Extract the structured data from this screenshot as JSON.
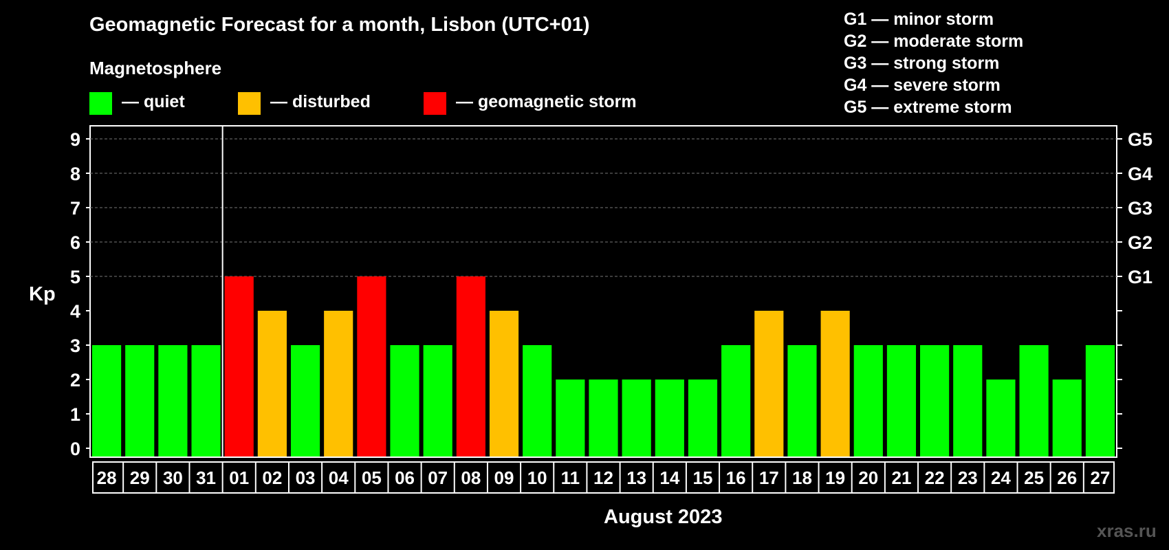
{
  "title": "Geomagnetic Forecast for a month, Lisbon (UTC+01)",
  "legend": {
    "heading": "Magnetosphere",
    "items": [
      {
        "label": "— quiet",
        "color": "#00ff00"
      },
      {
        "label": "— disturbed",
        "color": "#ffc000"
      },
      {
        "label": "— geomagnetic storm",
        "color": "#ff0000"
      }
    ],
    "storm_levels": [
      "G1 — minor storm",
      "G2 — moderate storm",
      "G3 — strong storm",
      "G4 — severe storm",
      "G5 — extreme storm"
    ]
  },
  "watermark": "xras.ru",
  "chart_data": {
    "type": "bar",
    "title": "Geomagnetic Forecast for a month, Lisbon (UTC+01)",
    "xlabel": "August 2023",
    "ylabel": "Kp",
    "ylim": [
      0,
      9
    ],
    "yticks": [
      0,
      1,
      2,
      3,
      4,
      5,
      6,
      7,
      8,
      9
    ],
    "right_axis_labels": [
      {
        "kp": 5,
        "label": "G1"
      },
      {
        "kp": 6,
        "label": "G2"
      },
      {
        "kp": 7,
        "label": "G3"
      },
      {
        "kp": 8,
        "label": "G4"
      },
      {
        "kp": 9,
        "label": "G5"
      }
    ],
    "month_divider_after": "31",
    "categories": [
      "28",
      "29",
      "30",
      "31",
      "01",
      "02",
      "03",
      "04",
      "05",
      "06",
      "07",
      "08",
      "09",
      "10",
      "11",
      "12",
      "13",
      "14",
      "15",
      "16",
      "17",
      "18",
      "19",
      "20",
      "21",
      "22",
      "23",
      "24",
      "25",
      "26",
      "27"
    ],
    "values": [
      3,
      3,
      3,
      3,
      5,
      4,
      3,
      4,
      5,
      3,
      3,
      5,
      4,
      3,
      2,
      2,
      2,
      2,
      2,
      3,
      4,
      3,
      4,
      3,
      3,
      3,
      3,
      2,
      3,
      2,
      3
    ],
    "color_thresholds": {
      "quiet": "#00ff00",
      "disturbed": "#ffc000",
      "storm": "#ff0000"
    }
  }
}
